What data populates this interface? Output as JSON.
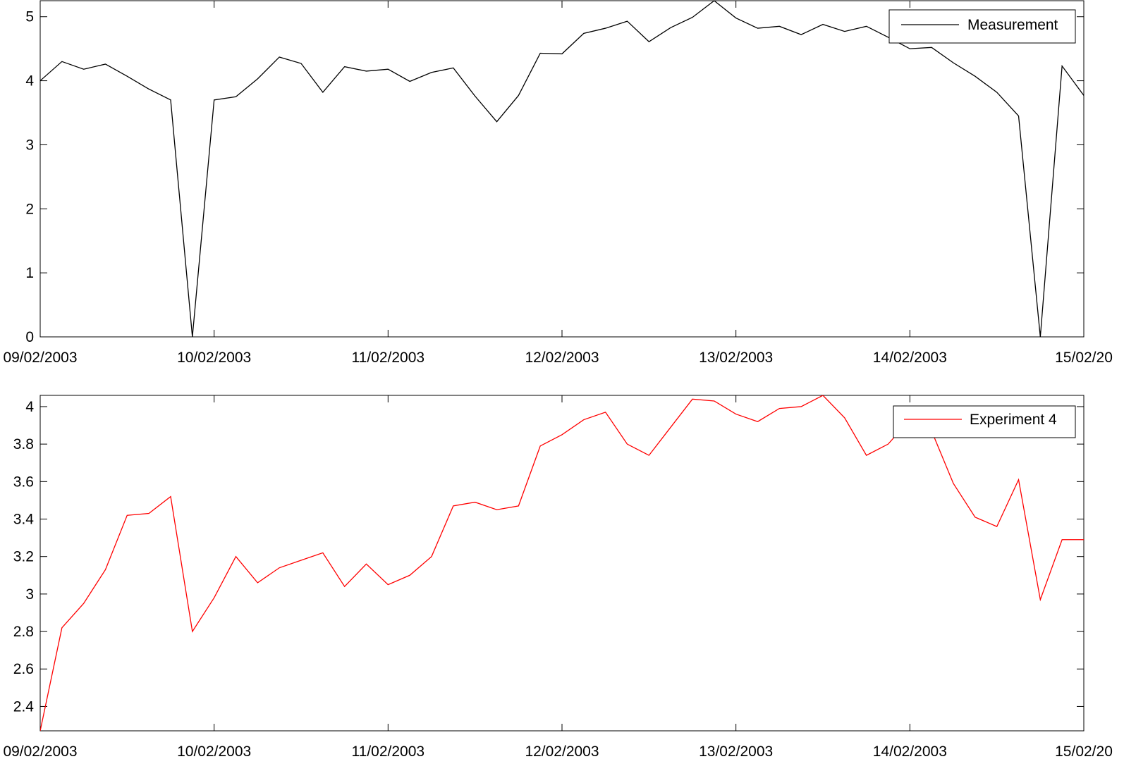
{
  "chart_data": [
    {
      "type": "line",
      "x_tick_labels": [
        "09/02/2003",
        "10/02/2003",
        "11/02/2003",
        "12/02/2003",
        "13/02/2003",
        "14/02/2003",
        "15/02/20"
      ],
      "y_ticks": [
        0,
        1,
        2,
        3,
        4,
        5
      ],
      "ylim": [
        0,
        5.25
      ],
      "xlim": [
        0,
        6
      ],
      "legend_position": "top-right",
      "grid": false,
      "series": [
        {
          "name": "Measurement",
          "color": "#000000",
          "x": [
            0,
            0.125,
            0.25,
            0.375,
            0.5,
            0.625,
            0.75,
            0.875,
            1,
            1.125,
            1.25,
            1.375,
            1.5,
            1.625,
            1.75,
            1.875,
            2,
            2.125,
            2.25,
            2.375,
            2.5,
            2.625,
            2.75,
            2.875,
            3,
            3.125,
            3.25,
            3.375,
            3.5,
            3.625,
            3.75,
            3.875,
            4,
            4.125,
            4.25,
            4.375,
            4.5,
            4.625,
            4.75,
            4.875,
            5,
            5.125,
            5.25,
            5.375,
            5.5,
            5.625,
            5.75,
            5.875,
            6
          ],
          "values": [
            4.0,
            4.3,
            4.18,
            4.26,
            4.07,
            3.87,
            3.7,
            0.0,
            3.7,
            3.75,
            4.03,
            4.37,
            4.27,
            3.82,
            4.22,
            4.15,
            4.18,
            3.99,
            4.13,
            4.2,
            3.76,
            3.36,
            3.77,
            4.43,
            4.42,
            4.74,
            4.82,
            4.93,
            4.61,
            4.83,
            4.99,
            5.25,
            4.98,
            4.82,
            4.85,
            4.72,
            4.88,
            4.77,
            4.85,
            4.68,
            4.5,
            4.52,
            4.28,
            4.07,
            3.82,
            3.45,
            0.0,
            4.23,
            3.77
          ]
        }
      ]
    },
    {
      "type": "line",
      "x_tick_labels": [
        "09/02/2003",
        "10/02/2003",
        "11/02/2003",
        "12/02/2003",
        "13/02/2003",
        "14/02/2003",
        "15/02/20"
      ],
      "y_ticks": [
        2.4,
        2.6,
        2.8,
        3,
        3.2,
        3.4,
        3.6,
        3.8,
        4
      ],
      "ylim": [
        2.27,
        4.06
      ],
      "xlim": [
        0,
        6
      ],
      "legend_position": "top-right",
      "grid": false,
      "series": [
        {
          "name": "Experiment 4",
          "color": "#ff0000",
          "x": [
            0,
            0.125,
            0.25,
            0.375,
            0.5,
            0.625,
            0.75,
            0.875,
            1,
            1.125,
            1.25,
            1.375,
            1.5,
            1.625,
            1.75,
            1.875,
            2,
            2.125,
            2.25,
            2.375,
            2.5,
            2.625,
            2.75,
            2.875,
            3,
            3.125,
            3.25,
            3.375,
            3.5,
            3.625,
            3.75,
            3.875,
            4,
            4.125,
            4.25,
            4.375,
            4.5,
            4.625,
            4.75,
            4.875,
            5,
            5.125,
            5.25,
            5.375,
            5.5,
            5.625,
            5.75,
            5.875,
            6
          ],
          "values": [
            2.27,
            2.82,
            2.95,
            3.13,
            3.42,
            3.43,
            3.52,
            2.8,
            2.98,
            3.2,
            3.06,
            3.14,
            3.18,
            3.22,
            3.04,
            3.16,
            3.05,
            3.1,
            3.2,
            3.47,
            3.49,
            3.45,
            3.47,
            3.79,
            3.85,
            3.93,
            3.97,
            3.8,
            3.74,
            3.89,
            4.04,
            4.03,
            3.96,
            3.92,
            3.99,
            4.0,
            4.06,
            3.94,
            3.74,
            3.8,
            3.93,
            3.87,
            3.59,
            3.41,
            3.36,
            3.61,
            2.97,
            3.29,
            3.29
          ]
        }
      ]
    }
  ]
}
